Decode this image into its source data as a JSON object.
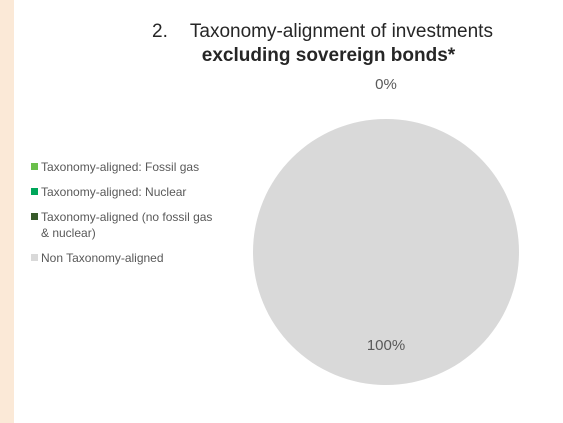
{
  "title": {
    "number": "2.",
    "line1": "Taxonomy-alignment of investments",
    "line2": "excluding sovereign bonds*"
  },
  "legend": [
    {
      "label": "Taxonomy-aligned: Fossil gas",
      "color": "#6abf4b"
    },
    {
      "label": "Taxonomy-aligned: Nuclear",
      "color": "#00a65a"
    },
    {
      "label": "Taxonomy-aligned (no fossil gas & nuclear)",
      "color": "#375a2a"
    },
    {
      "label": "Non Taxonomy-aligned",
      "color": "#d9d9d9"
    }
  ],
  "chart_data": {
    "type": "pie",
    "title": "Taxonomy-alignment of investments excluding sovereign bonds*",
    "slices": [
      {
        "label": "Taxonomy-aligned: Fossil gas",
        "value": 0,
        "color": "#6abf4b"
      },
      {
        "label": "Taxonomy-aligned: Nuclear",
        "value": 0,
        "color": "#00a65a"
      },
      {
        "label": "Taxonomy-aligned (no fossil gas & nuclear)",
        "value": 0,
        "color": "#375a2a"
      },
      {
        "label": "Non Taxonomy-aligned",
        "value": 100,
        "color": "#d9d9d9"
      }
    ],
    "data_labels": [
      "0%",
      "100%"
    ],
    "legend_position": "left"
  }
}
